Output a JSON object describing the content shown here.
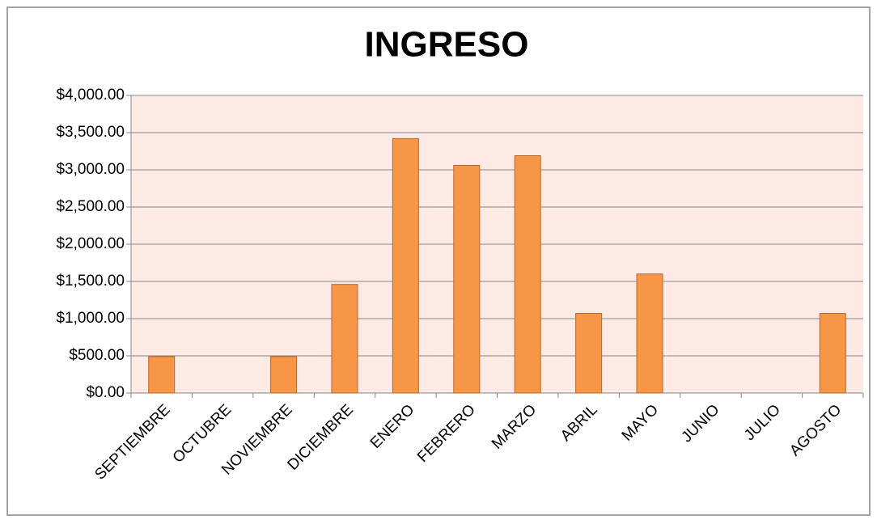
{
  "chart_data": {
    "type": "bar",
    "title": "INGRESO",
    "categories": [
      "SEPTIEMBRE",
      "OCTUBRE",
      "NOVIEMBRE",
      "DICIEMBRE",
      "ENERO",
      "FEBRERO",
      "MARZO",
      "ABRIL",
      "MAYO",
      "JUNIO",
      "JULIO",
      "AGOSTO"
    ],
    "values": [
      490,
      0,
      490,
      1460,
      3420,
      3060,
      3190,
      1070,
      1600,
      0,
      0,
      1070
    ],
    "color": "#f79646",
    "ylim": [
      0,
      4000
    ],
    "yticks": [
      {
        "value": 0,
        "label": "$0.00"
      },
      {
        "value": 500,
        "label": "$500.00"
      },
      {
        "value": 1000,
        "label": "$1,000.00"
      },
      {
        "value": 1500,
        "label": "$1,500.00"
      },
      {
        "value": 2000,
        "label": "$2,000.00"
      },
      {
        "value": 2500,
        "label": "$2,500.00"
      },
      {
        "value": 3000,
        "label": "$3,000.00"
      },
      {
        "value": 3500,
        "label": "$3,500.00"
      },
      {
        "value": 4000,
        "label": "$4,000.00"
      }
    ],
    "grid": true
  }
}
